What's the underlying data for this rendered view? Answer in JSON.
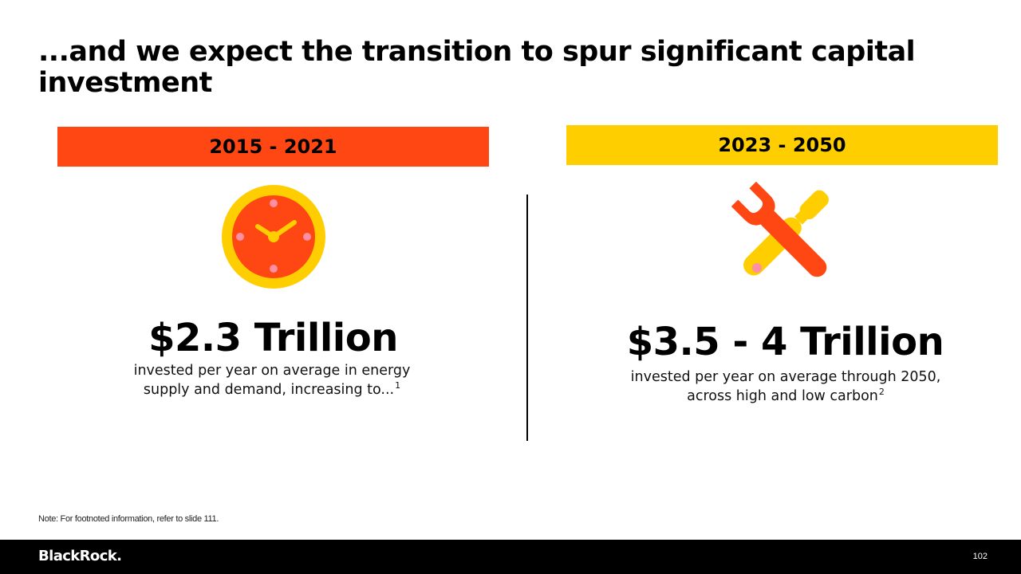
{
  "slide": {
    "title": "...and we expect the transition to spur significant capital investment",
    "note": "Note: For footnoted information, refer to slide 111.",
    "page_number": "102",
    "brand": "BlackRock."
  },
  "left": {
    "period": "2015 - 2021",
    "period_color": "#ff4713",
    "icon": "clock-icon",
    "value": "$2.3 Trillion",
    "line1": "invested per year on average in energy",
    "line2": "supply and demand, increasing to...",
    "footnote": "1"
  },
  "right": {
    "period": "2023 - 2050",
    "period_color": "#ffce00",
    "icon": "wrench-screwdriver-icon",
    "value": "$3.5 - 4 Trillion",
    "line1": "invested per year on average through 2050,",
    "line2": "across high and low carbon",
    "footnote": "2"
  }
}
